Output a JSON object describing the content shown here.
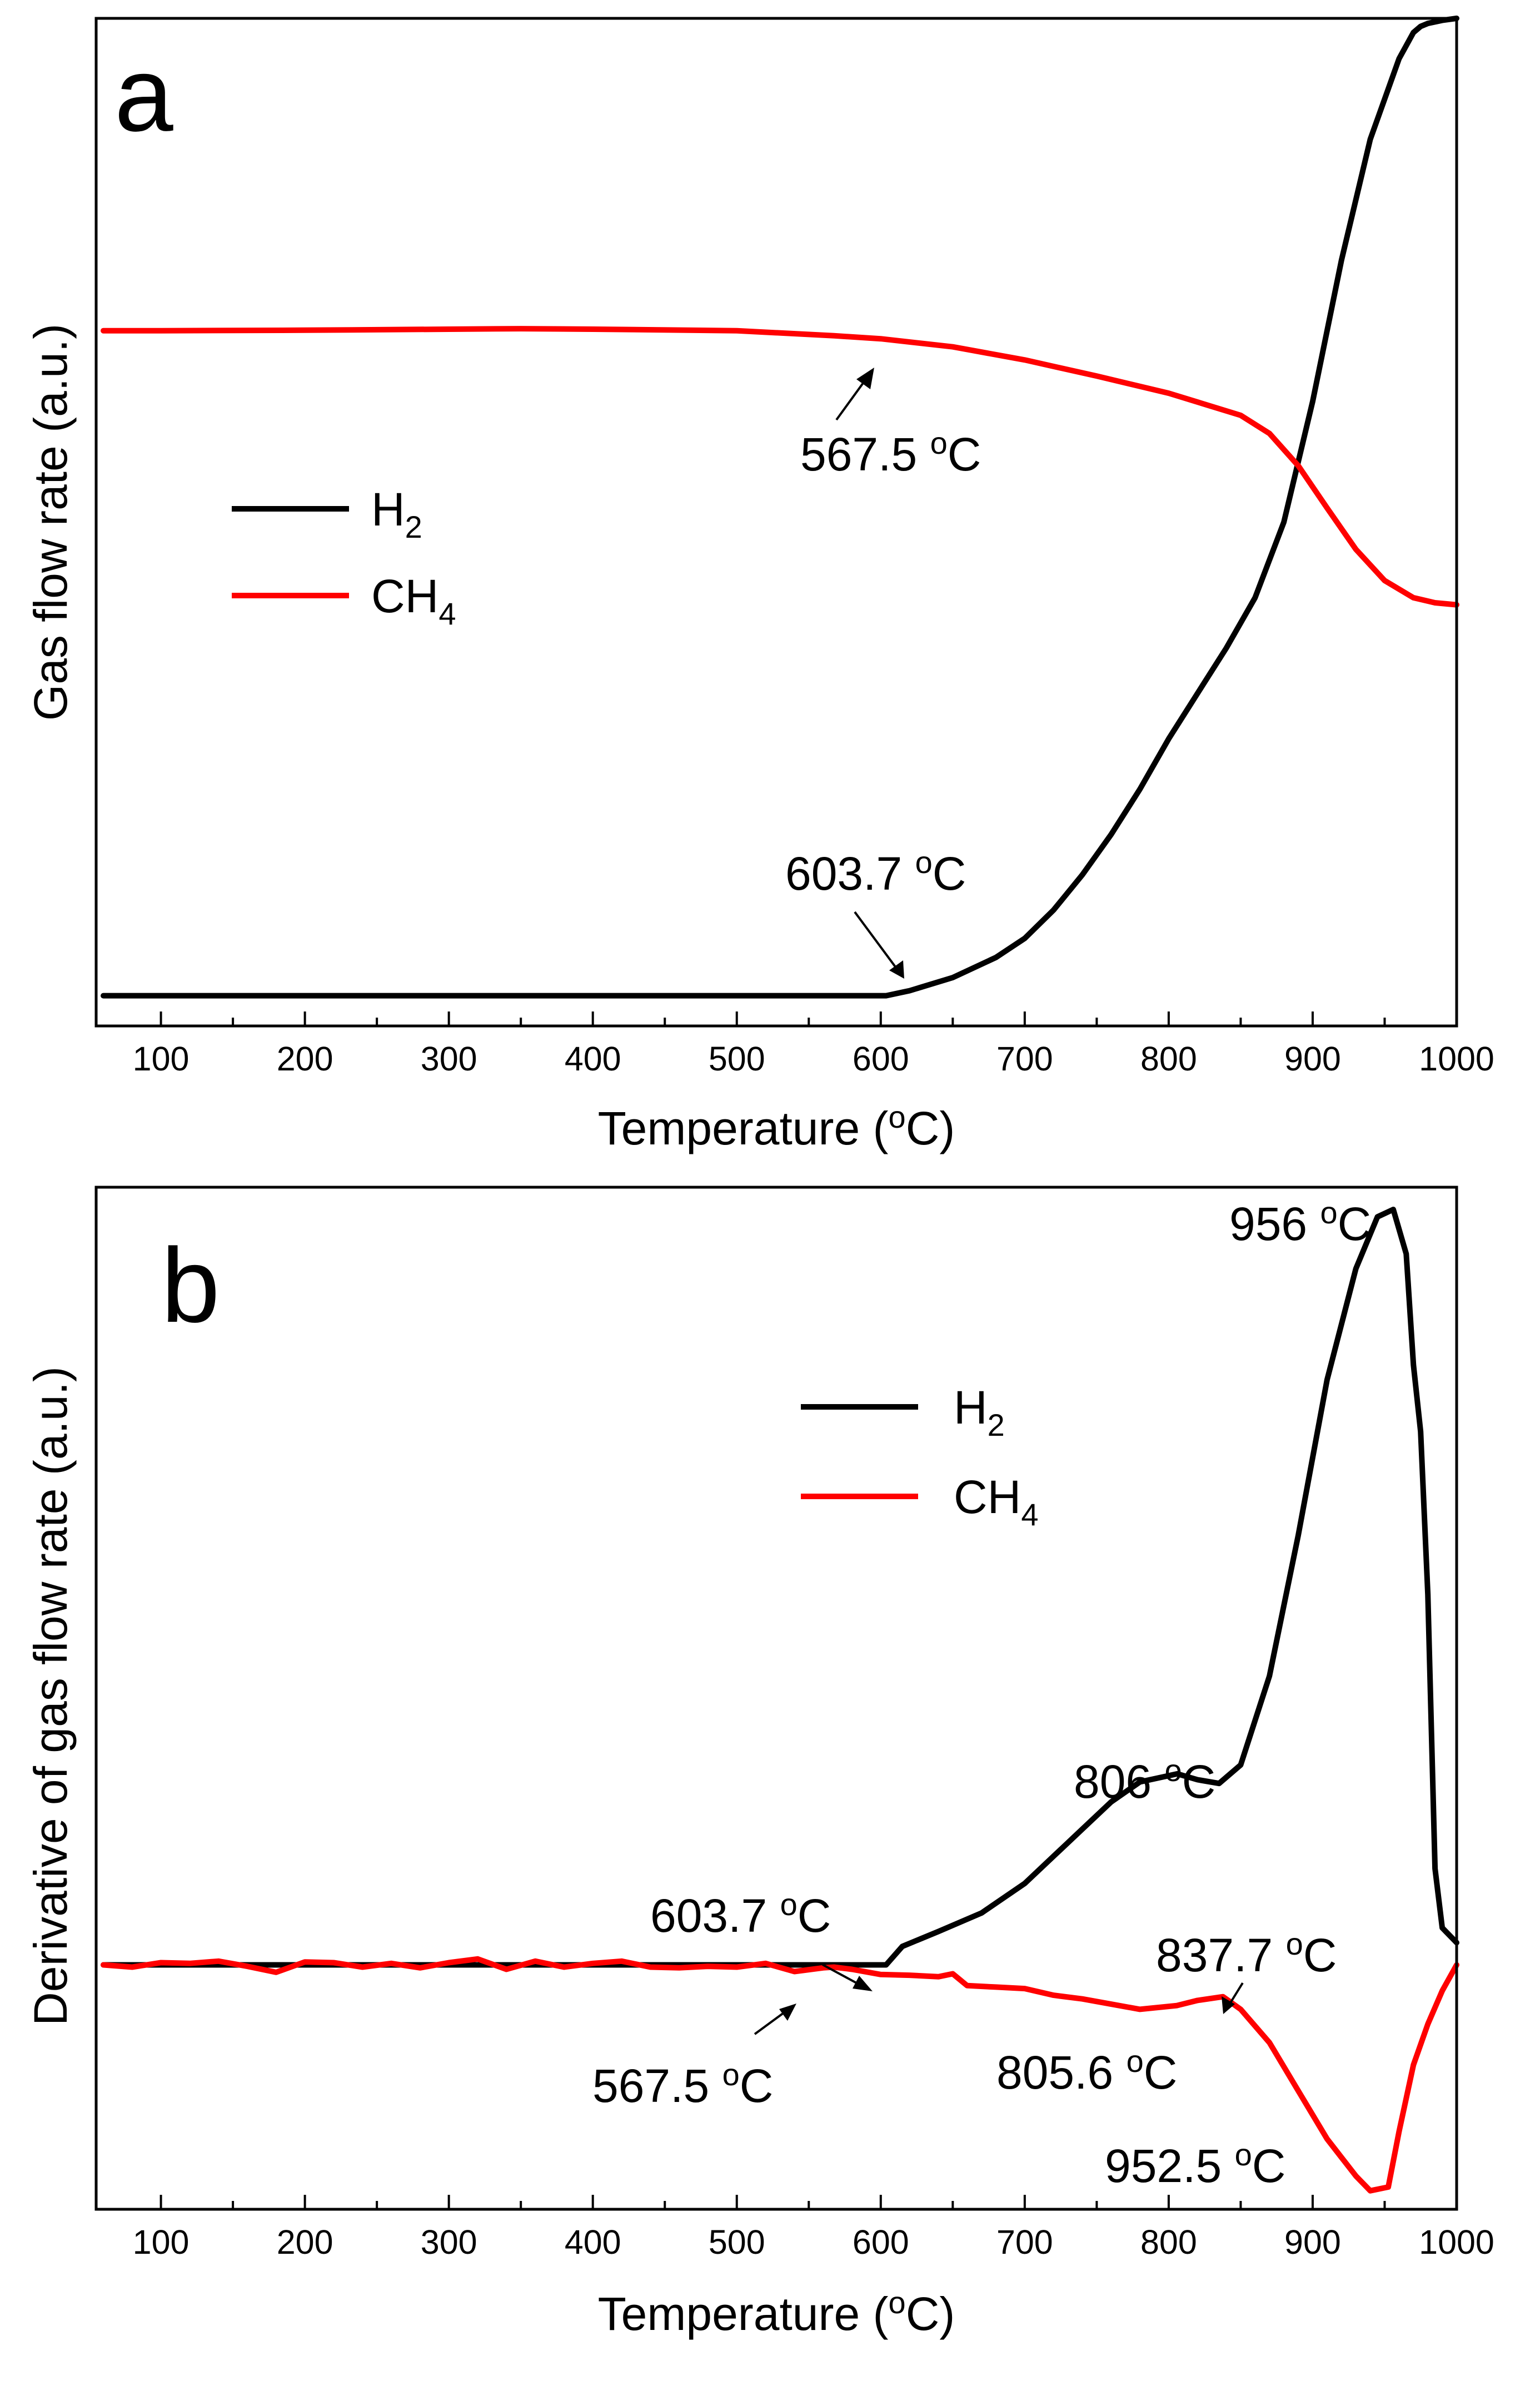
{
  "chart_data": [
    {
      "panel_letter": "a",
      "type": "line",
      "xlabel": "Temperature (oC)",
      "xlabel_parts": {
        "main": "Temperature (",
        "sup": "o",
        "tail": "C)"
      },
      "ylabel": "Gas flow rate (a.u.)",
      "xlim": [
        55,
        1000
      ],
      "ylim": [
        0,
        100
      ],
      "xticks": [
        100,
        200,
        300,
        400,
        500,
        600,
        700,
        800,
        900,
        1000
      ],
      "y_ticks_labeled": false,
      "legend": {
        "placement": "upper-left",
        "entries": [
          {
            "base": "H",
            "sub": "2",
            "color": "#000000"
          },
          {
            "base": "CH",
            "sub": "4",
            "color": "#ff0000"
          }
        ]
      },
      "series": [
        {
          "name": "H2",
          "color": "#000000",
          "x": [
            60,
            100,
            200,
            300,
            400,
            500,
            580,
            603.7,
            620,
            650,
            680,
            700,
            720,
            740,
            760,
            780,
            800,
            820,
            840,
            860,
            880,
            900,
            920,
            940,
            950,
            960,
            970,
            975,
            980,
            990,
            1000
          ],
          "y": [
            3,
            3,
            3,
            3,
            3,
            3,
            3,
            3,
            3.5,
            4.8,
            6.8,
            8.7,
            11.5,
            15,
            19,
            23.5,
            28.5,
            33,
            37.5,
            42.5,
            50,
            62,
            76,
            88,
            92,
            96,
            98.6,
            99.2,
            99.5,
            99.8,
            100
          ]
        },
        {
          "name": "CH4",
          "color": "#ff0000",
          "x": [
            60,
            100,
            200,
            300,
            350,
            400,
            500,
            567.5,
            600,
            650,
            700,
            750,
            800,
            850,
            870,
            890,
            910,
            930,
            950,
            970,
            985,
            1000
          ],
          "y": [
            69,
            69,
            69.05,
            69.15,
            69.2,
            69.15,
            69,
            68.5,
            68.2,
            67.4,
            66.1,
            64.5,
            62.8,
            60.6,
            58.8,
            55.6,
            51.4,
            47.3,
            44.2,
            42.5,
            42,
            41.8
          ]
        }
      ],
      "annotations": [
        {
          "value": "567.5",
          "unit_sup": "o",
          "unit": "C",
          "series": "CH4",
          "x": 567.5
        },
        {
          "value": "603.7",
          "unit_sup": "o",
          "unit": "C",
          "series": "H2",
          "x": 603.7
        }
      ]
    },
    {
      "panel_letter": "b",
      "type": "line",
      "xlabel": "Temperature (oC)",
      "xlabel_parts": {
        "main": "Temperature (",
        "sup": "o",
        "tail": "C)"
      },
      "ylabel": "Derivative of gas flow rate (a.u.)",
      "xlim": [
        55,
        1000
      ],
      "ylim": [
        -33,
        105
      ],
      "xticks": [
        100,
        200,
        300,
        400,
        500,
        600,
        700,
        800,
        900,
        1000
      ],
      "y_ticks_labeled": false,
      "legend": {
        "placement": "upper-middle",
        "entries": [
          {
            "base": "H",
            "sub": "2",
            "color": "#000000"
          },
          {
            "base": "CH",
            "sub": "4",
            "color": "#ff0000"
          }
        ]
      },
      "series": [
        {
          "name": "H2",
          "color": "#000000",
          "x": [
            60,
            100,
            200,
            300,
            400,
            500,
            590,
            603.7,
            615,
            640,
            670,
            700,
            730,
            760,
            780,
            806,
            820,
            835,
            850,
            870,
            890,
            910,
            930,
            945,
            956,
            965,
            970,
            975,
            980,
            985,
            990,
            1000
          ],
          "y": [
            0,
            0,
            0,
            0,
            0,
            0,
            0,
            0,
            2.5,
            4.5,
            7,
            11,
            16.5,
            22,
            24.7,
            25.8,
            25,
            24.5,
            27,
            39,
            58,
            79,
            94,
            101,
            102,
            96,
            81,
            72,
            50,
            13,
            5,
            3
          ]
        },
        {
          "name": "CH4",
          "color": "#ff0000",
          "x": [
            60,
            80,
            100,
            120,
            140,
            160,
            180,
            200,
            220,
            240,
            260,
            280,
            300,
            320,
            340,
            360,
            380,
            400,
            420,
            440,
            460,
            480,
            500,
            520,
            540,
            560,
            567.5,
            580,
            600,
            620,
            640,
            650,
            660,
            680,
            700,
            720,
            740,
            760,
            780,
            805.6,
            820,
            837.7,
            850,
            870,
            890,
            910,
            930,
            940,
            952.5,
            960,
            970,
            980,
            990,
            1000
          ],
          "y": [
            0,
            -0.3,
            0.3,
            0.2,
            0.5,
            -0.2,
            -1,
            0.4,
            0.3,
            -0.3,
            0.2,
            -0.4,
            0.3,
            0.8,
            -0.6,
            0.5,
            -0.3,
            0.2,
            0.5,
            -0.3,
            -0.4,
            -0.2,
            -0.3,
            0.2,
            -0.9,
            -0.4,
            -0.3,
            -0.6,
            -1.3,
            -1.4,
            -1.6,
            -1.2,
            -2.8,
            -3,
            -3.2,
            -4.1,
            -4.6,
            -5.3,
            -6,
            -5.5,
            -4.8,
            -4.3,
            -6,
            -10.5,
            -17,
            -23.5,
            -28.5,
            -30.5,
            -30,
            -22.5,
            -13.5,
            -8,
            -3.5,
            0
          ]
        }
      ],
      "annotations": [
        {
          "value": "956",
          "unit_sup": "o",
          "unit": "C",
          "series": "H2",
          "x": 956
        },
        {
          "value": "806",
          "unit_sup": "o",
          "unit": "C",
          "series": "H2",
          "x": 806
        },
        {
          "value": "603.7",
          "unit_sup": "o",
          "unit": "C",
          "series": "H2",
          "x": 603.7
        },
        {
          "value": "837.7",
          "unit_sup": "o",
          "unit": "C",
          "series": "CH4",
          "x": 837.7
        },
        {
          "value": "567.5",
          "unit_sup": "o",
          "unit": "C",
          "series": "CH4",
          "x": 567.5
        },
        {
          "value": "805.6",
          "unit_sup": "o",
          "unit": "C",
          "series": "CH4",
          "x": 805.6
        },
        {
          "value": "952.5",
          "unit_sup": "o",
          "unit": "C",
          "series": "CH4",
          "x": 952.5
        }
      ]
    }
  ]
}
